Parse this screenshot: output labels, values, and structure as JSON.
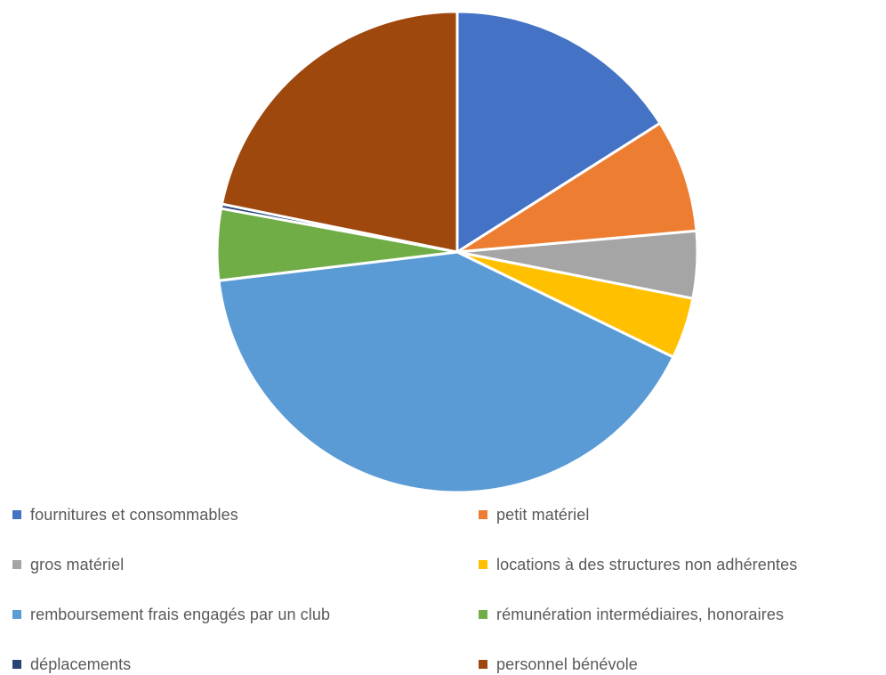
{
  "chart_data": {
    "type": "pie",
    "title": "",
    "legend_position": "bottom",
    "slices": [
      {
        "label": "fournitures et consommables",
        "value": 16,
        "color": "#4472C4"
      },
      {
        "label": "petit matériel",
        "value": 7.6,
        "color": "#ED7D31"
      },
      {
        "label": "gros matériel",
        "value": 4.5,
        "color": "#A5A5A5"
      },
      {
        "label": "locations à des structures non adhérentes",
        "value": 4.1,
        "color": "#FFC000"
      },
      {
        "label": "remboursement frais engagés par un club",
        "value": 40.9,
        "color": "#5B9BD5"
      },
      {
        "label": "rémunération intermédiaires, honoraires",
        "value": 4.8,
        "color": "#70AD47"
      },
      {
        "label": "déplacements",
        "value": 0.3,
        "color": "#264478"
      },
      {
        "label": "personnel bénévole",
        "value": 21.8,
        "color": "#9E480E"
      }
    ]
  }
}
